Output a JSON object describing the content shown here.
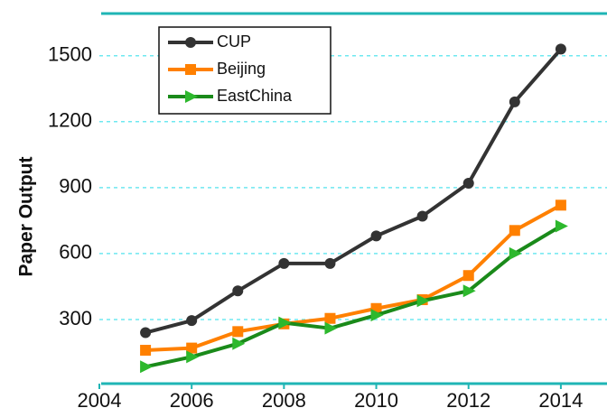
{
  "chart_data": {
    "type": "line",
    "ylabel": "Paper Output",
    "x": [
      2005,
      2006,
      2007,
      2008,
      2009,
      2010,
      2011,
      2012,
      2013,
      2014
    ],
    "series": [
      {
        "name": "CUP",
        "color": "#333333",
        "marker": "circle",
        "values": [
          240,
          295,
          430,
          555,
          555,
          680,
          770,
          920,
          1290,
          1530
        ]
      },
      {
        "name": "Beijing",
        "color": "#ff8000",
        "marker": "square",
        "values": [
          160,
          170,
          245,
          280,
          305,
          350,
          390,
          500,
          705,
          820
        ]
      },
      {
        "name": "EastChina",
        "color": "#1a8a1a",
        "marker": "triangle-right",
        "values": [
          85,
          130,
          190,
          285,
          260,
          320,
          385,
          430,
          600,
          725
        ]
      }
    ],
    "xlim": [
      2004,
      2015
    ],
    "xticks": [
      2004,
      2006,
      2008,
      2010,
      2012,
      2014
    ],
    "ylim": [
      0,
      1700
    ],
    "yticks": [
      300,
      600,
      900,
      1200,
      1500
    ],
    "grid": true,
    "legend": "upper left"
  }
}
